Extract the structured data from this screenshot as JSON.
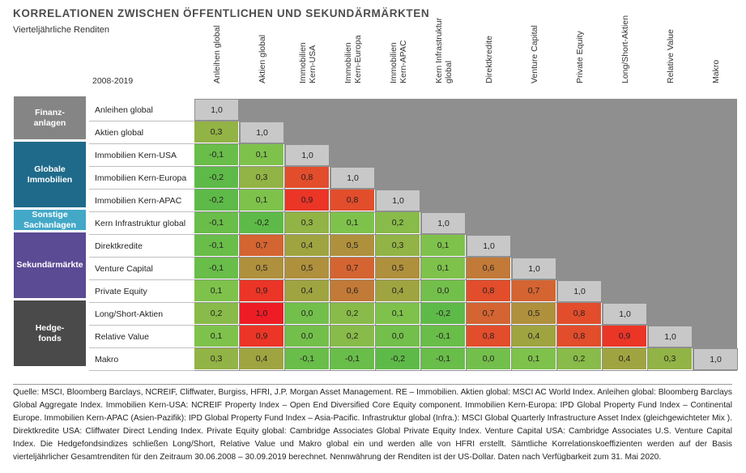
{
  "title": "KORRELATIONEN ZWISCHEN ÖFFENTLICHEN UND SEKUNDÄRMÄRKTEN",
  "subtitle": "Vierteljährliche Renditen",
  "period": "2008-2019",
  "column_headers": [
    "Anleihen global",
    "Aktien global",
    "Immobilien\nKern-USA",
    "Immobilien\nKern-Europa",
    "Immobilien\nKern-APAC",
    "Kern Infrastruktur\nglobal",
    "Direktkredite",
    "Venture Capital",
    "Private Equity",
    "Long/Short-Aktien",
    "Relative Value",
    "Makro"
  ],
  "groups": [
    {
      "label": "Finanz-\nanlagen",
      "color": "#858585",
      "start": 0,
      "span": 2
    },
    {
      "label": "Globale\nImmobilien",
      "color": "#1f6a8a",
      "start": 2,
      "span": 3
    },
    {
      "label": "Sonstige\nSachanlagen",
      "color": "#43a8c8",
      "start": 5,
      "span": 1
    },
    {
      "label": "Sekundärmärkte",
      "color": "#5b4a94",
      "start": 6,
      "span": 3
    },
    {
      "label": "Hedge-\nfonds",
      "color": "#4a4a4a",
      "start": 9,
      "span": 3
    }
  ],
  "colors": {
    "diag": "#c8c8c8",
    "background": "#8f8f8f",
    "low": "#7cc242",
    "high": "#ee1c25"
  },
  "chart_data": {
    "type": "heatmap",
    "title": "KORRELATIONEN ZWISCHEN ÖFFENTLICHEN UND SEKUNDÄRMÄRKTEN",
    "subtitle": "Vierteljährliche Renditen",
    "rows": [
      "Anleihen global",
      "Aktien global",
      "Immobilien Kern-USA",
      "Immobilien Kern-Europa",
      "Immobilien Kern-APAC",
      "Kern Infrastruktur global",
      "Direktkredite",
      "Venture Capital",
      "Private Equity",
      "Long/Short-Aktien",
      "Relative Value",
      "Makro"
    ],
    "values": [
      [
        "1,0"
      ],
      [
        "0,3",
        "1,0"
      ],
      [
        "-0,1",
        "0,1",
        "1,0"
      ],
      [
        "-0,2",
        "0,3",
        "0,8",
        "1,0"
      ],
      [
        "-0,2",
        "0,1",
        "0,9",
        "0,8",
        "1,0"
      ],
      [
        "-0,1",
        "-0,2",
        "0,3",
        "0,1",
        "0,2",
        "1,0"
      ],
      [
        "-0,1",
        "0,7",
        "0,4",
        "0,5",
        "0,3",
        "0,1",
        "1,0"
      ],
      [
        "-0,1",
        "0,5",
        "0,5",
        "0,7",
        "0,5",
        "0,1",
        "0,6",
        "1,0"
      ],
      [
        "0,1",
        "0,9",
        "0,4",
        "0,6",
        "0,4",
        "0,0",
        "0,8",
        "0,7",
        "1,0"
      ],
      [
        "0,2",
        "1,0",
        "0,0",
        "0,2",
        "0,1",
        "-0,2",
        "0,7",
        "0,5",
        "0,8",
        "1,0"
      ],
      [
        "0,1",
        "0,9",
        "0,0",
        "0,2",
        "0,0",
        "-0,1",
        "0,8",
        "0,4",
        "0,8",
        "0,9",
        "1,0"
      ],
      [
        "0,3",
        "0,4",
        "-0,1",
        "-0,1",
        "-0,2",
        "-0,1",
        "0,0",
        "0,1",
        "0,2",
        "0,4",
        "0,3",
        "1,0"
      ]
    ]
  },
  "source": "Quelle: MSCI, Bloomberg Barclays, NCREIF, Cliffwater, Burgiss, HFRI, J.P. Morgan Asset Management. RE – Immobilien. Aktien global: MSCI AC World Index. Anleihen global: Bloomberg Barclays Global Aggregate Index. Immobilien Kern-USA: NCREIF Property Index – Open End Diversified Core Equity component. Immobilien Kern-Europa: IPD Global Property Fund Index – Continental Europe. Immobilien Kern-APAC (Asien-Pazifik): IPD Global Property Fund Index – Asia-Pacific. Infrastruktur global (Infra.): MSCI Global Quarterly Infrastructure Asset Index (gleichgewichteter Mix ). Direktkredite USA: Cliffwater Direct Lending Index. Private Equity global: Cambridge Associates Global Private Equity Index. Venture Capital USA: Cambridge Associates U.S. Venture Capital Index. Die Hedgefondsindizes schließen Long/Short, Relative Value und Makro global ein und werden alle von HFRI erstellt. Sämtliche Korrelationskoeffizienten werden auf der Basis vierteljährlicher Gesamtrenditen für den Zeitraum 30.06.2008 – 30.09.2019 berechnet. Nennwährung der Renditen ist der US-Dollar. Daten nach Verfügbarkeit zum 31. Mai 2020."
}
